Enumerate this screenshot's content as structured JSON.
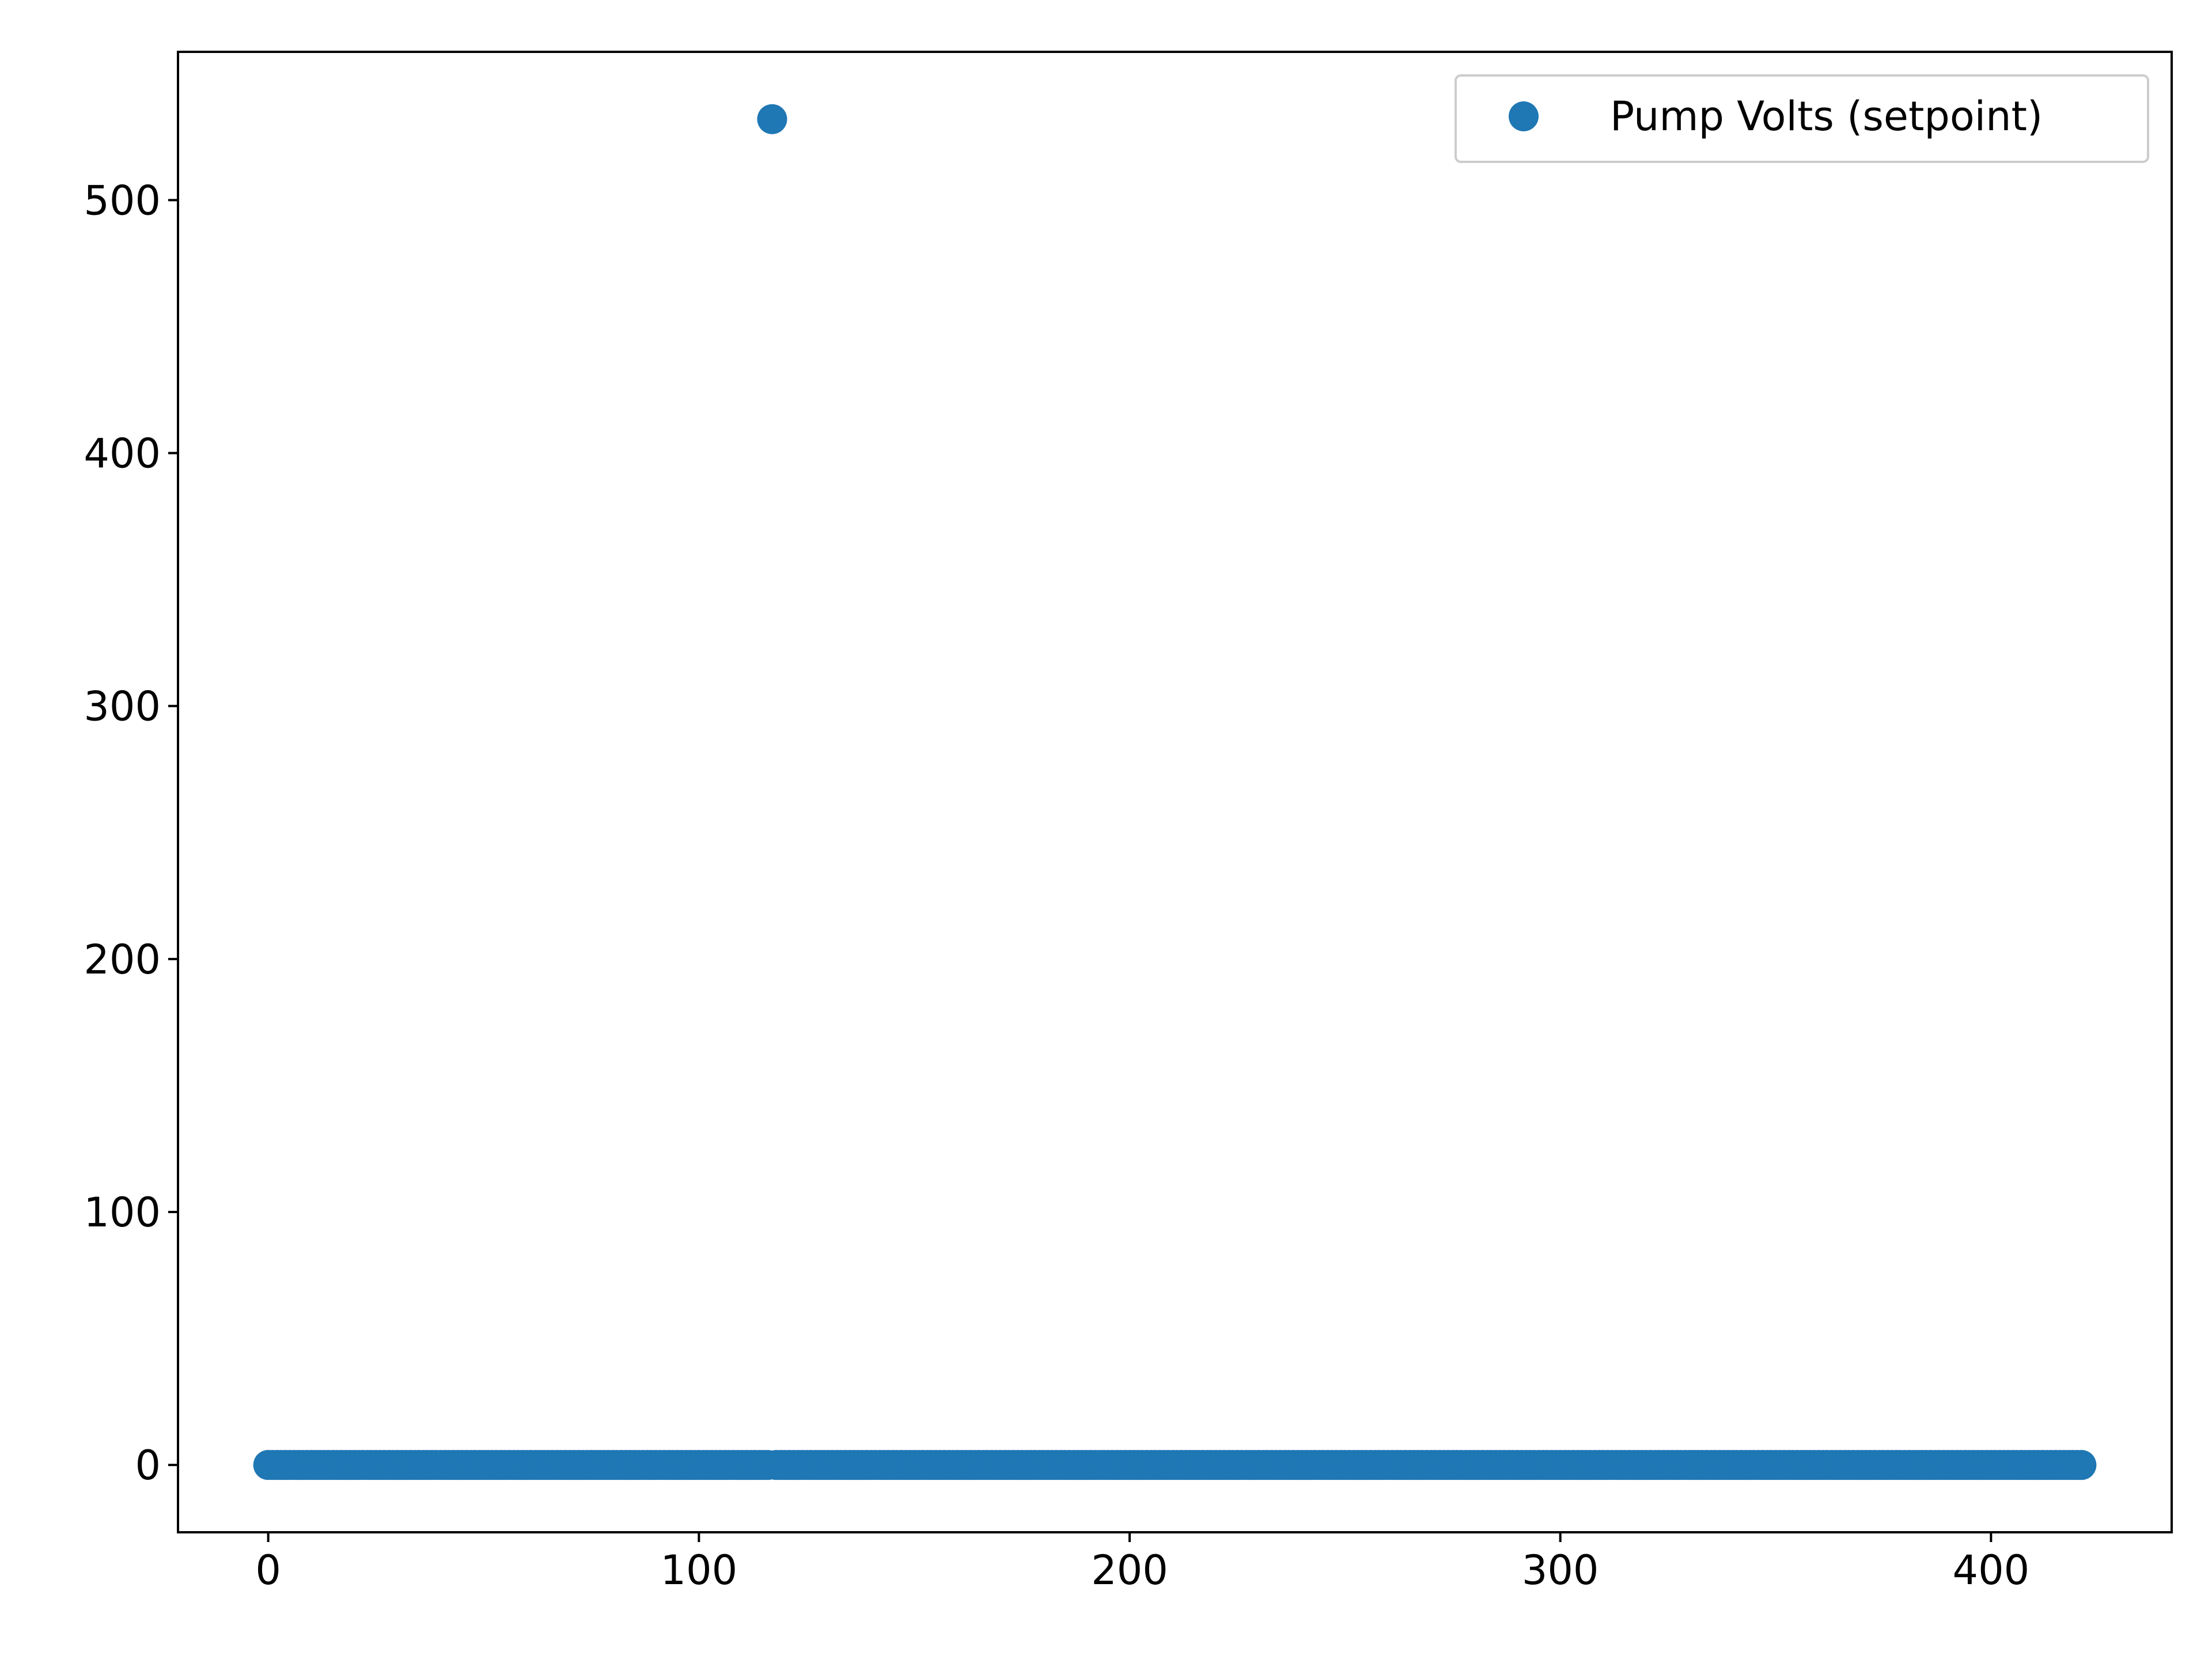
{
  "chart_data": {
    "type": "scatter",
    "title": "",
    "xlabel": "",
    "ylabel": "",
    "xlim": [
      -20.95,
      441.95
    ],
    "ylim": [
      -26.6,
      558.6
    ],
    "xticks": [
      0,
      100,
      200,
      300,
      400
    ],
    "yticks": [
      0,
      100,
      200,
      300,
      400,
      500
    ],
    "grid": false,
    "legend_position": "upper right",
    "series": [
      {
        "name": "Pump Volts (setpoint)",
        "color": "#1f77b4",
        "marker": "circle",
        "points_constant": {
          "x_start": 0,
          "x_end": 421,
          "x_step": 1,
          "y": 0,
          "except_x": [
            117
          ]
        },
        "points_outliers": [
          {
            "x": 117,
            "y": 532
          }
        ]
      }
    ]
  }
}
